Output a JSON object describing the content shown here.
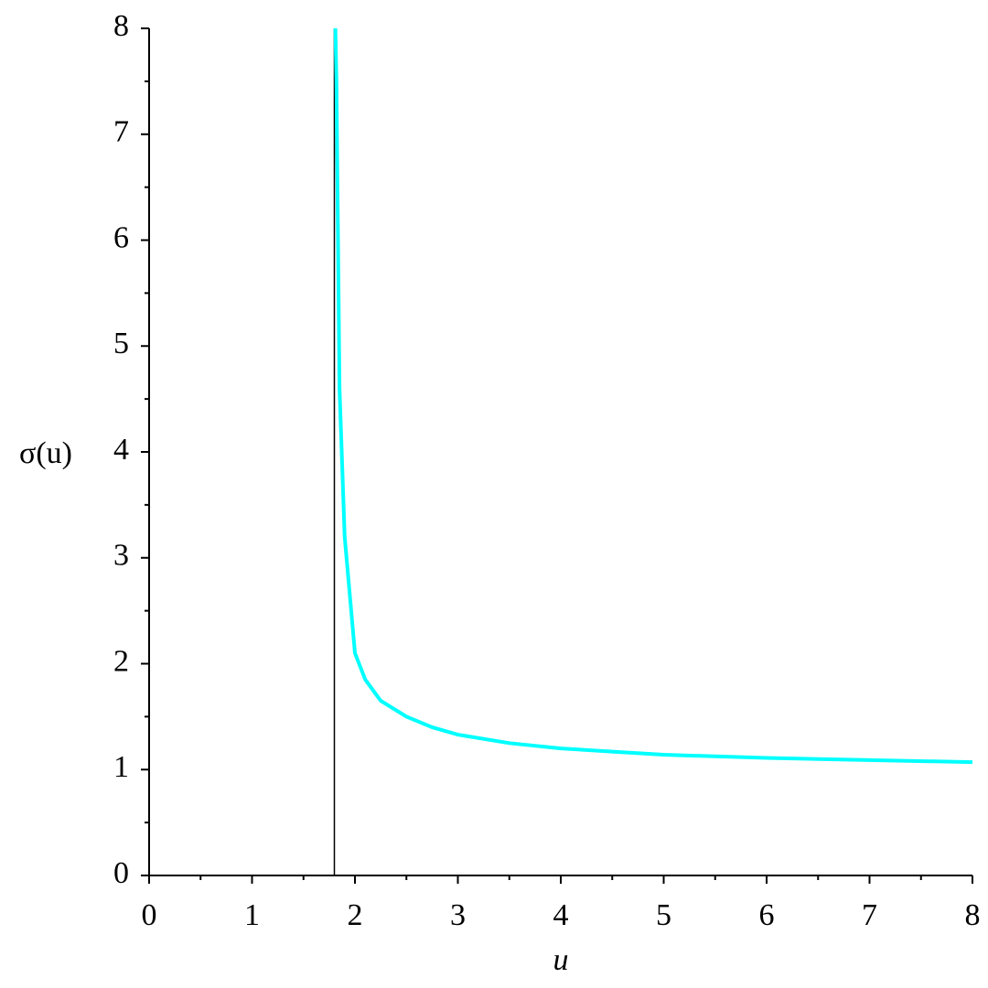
{
  "chart_data": {
    "type": "line",
    "xlabel": "u",
    "ylabel": "σ(u)",
    "x": [
      1.81,
      1.82,
      1.85,
      1.9,
      2.0,
      2.1,
      2.25,
      2.5,
      2.75,
      3,
      3.5,
      4,
      4.5,
      5,
      6,
      7,
      8
    ],
    "values": [
      8.0,
      7.5,
      4.6,
      3.2,
      2.1,
      1.85,
      1.65,
      1.5,
      1.4,
      1.33,
      1.25,
      1.2,
      1.17,
      1.14,
      1.11,
      1.09,
      1.07
    ],
    "color": "#00ffff",
    "vline": 1.8,
    "vline_color": "#000000",
    "xlim": [
      0,
      8
    ],
    "ylim": [
      0,
      8
    ],
    "xticks": [
      0,
      1,
      2,
      3,
      4,
      5,
      6,
      7,
      8
    ],
    "yticks": [
      0,
      1,
      2,
      3,
      4,
      5,
      6,
      7,
      8
    ],
    "xminorticks": [
      0.5,
      1.5,
      2.5,
      3.5,
      4.5,
      5.5,
      6.5,
      7.5
    ],
    "yminorticks": [
      0.5,
      1.5,
      2.5,
      3.5,
      4.5,
      5.5,
      6.5,
      7.5
    ],
    "grid": false
  }
}
